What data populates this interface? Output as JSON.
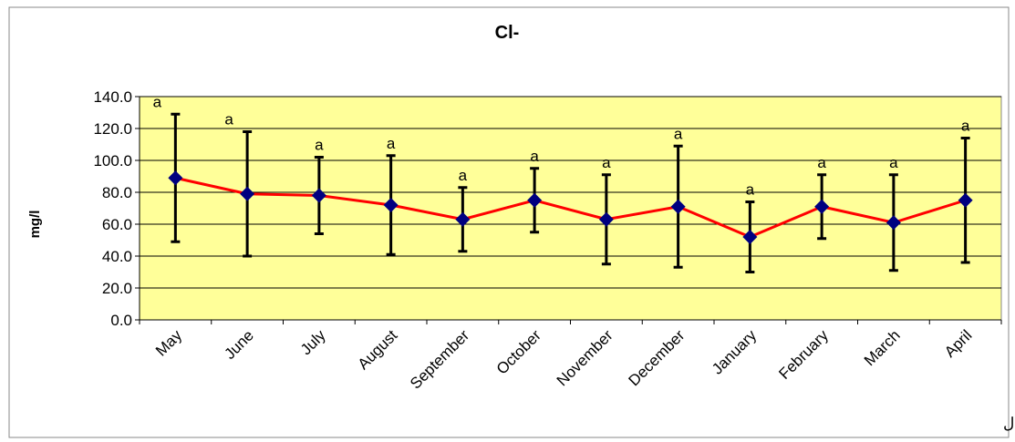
{
  "chart_data": {
    "type": "line",
    "title": "Cl-",
    "y_label": "mg/l",
    "x_label": "ماهاي سال",
    "categories": [
      "May",
      "June",
      "July",
      "August",
      "September",
      "October",
      "November",
      "December",
      "January",
      "February",
      "March",
      "April"
    ],
    "series": [
      {
        "color": "#ff0000",
        "marker_color": "#000080",
        "values": [
          89,
          79,
          78,
          72,
          63,
          75,
          63,
          71,
          52,
          71,
          61,
          75
        ],
        "errors": [
          40,
          39,
          24,
          31,
          20,
          20,
          28,
          38,
          22,
          20,
          30,
          39
        ]
      }
    ],
    "annotations": [
      "a",
      "a",
      "a",
      "a",
      "a",
      "a",
      "a",
      "a",
      "a",
      "a",
      "a",
      "a"
    ],
    "ylim": [
      0,
      140
    ],
    "yticks": [
      {
        "value": 0,
        "label": "0.0"
      },
      {
        "value": 20,
        "label": "20.0"
      },
      {
        "value": 40,
        "label": "40.0"
      },
      {
        "value": 60,
        "label": "60.0"
      },
      {
        "value": 80,
        "label": "80.0"
      },
      {
        "value": 100,
        "label": "100.0"
      },
      {
        "value": 120,
        "label": "120.0"
      },
      {
        "value": 140,
        "label": "140.0"
      }
    ],
    "grid": true,
    "plot_background": "#ffff99"
  }
}
